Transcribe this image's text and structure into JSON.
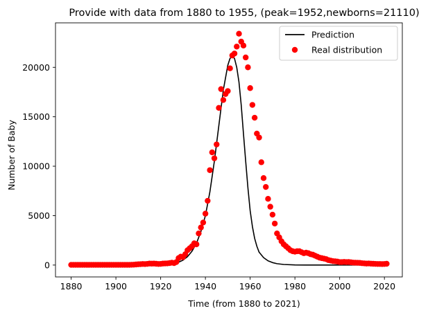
{
  "chart_data": {
    "type": "line+scatter",
    "title": "Provide with data from 1880 to 1955, (peak=1952,newborns=21110)",
    "xlabel": "Time (from 1880 to 2021)",
    "ylabel": "Number of Baby",
    "xlim": [
      1873,
      2028
    ],
    "ylim": [
      -1200,
      24500
    ],
    "xticks": [
      1880,
      1900,
      1920,
      1940,
      1960,
      1980,
      2000,
      2020
    ],
    "yticks": [
      0,
      5000,
      10000,
      15000,
      20000
    ],
    "grid": false,
    "legend_position": "top-right",
    "colors": {
      "prediction": "#000000",
      "real": "#ff0000"
    },
    "legend": [
      {
        "label": "Prediction",
        "marker": "line",
        "color": "#000000"
      },
      {
        "label": "Real distribution",
        "marker": "dot",
        "color": "#ff0000"
      }
    ],
    "series": [
      {
        "name": "Prediction",
        "kind": "line",
        "color": "#000000",
        "points": [
          [
            1880,
            0
          ],
          [
            1900,
            0
          ],
          [
            1910,
            2
          ],
          [
            1915,
            8
          ],
          [
            1920,
            30
          ],
          [
            1923,
            70
          ],
          [
            1926,
            160
          ],
          [
            1928,
            290
          ],
          [
            1930,
            500
          ],
          [
            1932,
            850
          ],
          [
            1934,
            1400
          ],
          [
            1936,
            2200
          ],
          [
            1938,
            3400
          ],
          [
            1940,
            5000
          ],
          [
            1942,
            7400
          ],
          [
            1944,
            10500
          ],
          [
            1946,
            14100
          ],
          [
            1948,
            17700
          ],
          [
            1950,
            20200
          ],
          [
            1951,
            20900
          ],
          [
            1952,
            21110
          ],
          [
            1953,
            20900
          ],
          [
            1954,
            20000
          ],
          [
            1955,
            18500
          ],
          [
            1956,
            16200
          ],
          [
            1957,
            13300
          ],
          [
            1958,
            10500
          ],
          [
            1959,
            7800
          ],
          [
            1960,
            5500
          ],
          [
            1961,
            3900
          ],
          [
            1962,
            2700
          ],
          [
            1963,
            1900
          ],
          [
            1964,
            1300
          ],
          [
            1966,
            750
          ],
          [
            1968,
            430
          ],
          [
            1970,
            250
          ],
          [
            1972,
            140
          ],
          [
            1975,
            60
          ],
          [
            1980,
            15
          ],
          [
            1985,
            3
          ],
          [
            1990,
            0
          ],
          [
            2000,
            0
          ],
          [
            2010,
            0
          ],
          [
            2021,
            0
          ]
        ]
      },
      {
        "name": "Real distribution",
        "kind": "scatter",
        "color": "#ff0000",
        "points": [
          [
            1880,
            20
          ],
          [
            1881,
            20
          ],
          [
            1882,
            20
          ],
          [
            1883,
            20
          ],
          [
            1884,
            20
          ],
          [
            1885,
            20
          ],
          [
            1886,
            20
          ],
          [
            1887,
            20
          ],
          [
            1888,
            20
          ],
          [
            1889,
            20
          ],
          [
            1890,
            20
          ],
          [
            1891,
            20
          ],
          [
            1892,
            20
          ],
          [
            1893,
            20
          ],
          [
            1894,
            20
          ],
          [
            1895,
            20
          ],
          [
            1896,
            20
          ],
          [
            1897,
            20
          ],
          [
            1898,
            20
          ],
          [
            1899,
            20
          ],
          [
            1900,
            20
          ],
          [
            1901,
            20
          ],
          [
            1902,
            20
          ],
          [
            1903,
            20
          ],
          [
            1904,
            20
          ],
          [
            1905,
            20
          ],
          [
            1906,
            20
          ],
          [
            1907,
            30
          ],
          [
            1908,
            40
          ],
          [
            1909,
            60
          ],
          [
            1910,
            80
          ],
          [
            1911,
            90
          ],
          [
            1912,
            110
          ],
          [
            1913,
            100
          ],
          [
            1914,
            120
          ],
          [
            1915,
            150
          ],
          [
            1916,
            140
          ],
          [
            1917,
            150
          ],
          [
            1918,
            130
          ],
          [
            1919,
            110
          ],
          [
            1920,
            120
          ],
          [
            1921,
            150
          ],
          [
            1922,
            160
          ],
          [
            1923,
            170
          ],
          [
            1924,
            200
          ],
          [
            1925,
            240
          ],
          [
            1926,
            200
          ],
          [
            1927,
            300
          ],
          [
            1928,
            700
          ],
          [
            1929,
            850
          ],
          [
            1930,
            800
          ],
          [
            1931,
            1100
          ],
          [
            1932,
            1500
          ],
          [
            1933,
            1700
          ],
          [
            1934,
            1900
          ],
          [
            1935,
            2200
          ],
          [
            1936,
            2100
          ],
          [
            1937,
            3200
          ],
          [
            1938,
            3800
          ],
          [
            1939,
            4300
          ],
          [
            1940,
            5200
          ],
          [
            1941,
            6500
          ],
          [
            1942,
            9600
          ],
          [
            1943,
            11400
          ],
          [
            1944,
            10800
          ],
          [
            1945,
            12200
          ],
          [
            1946,
            15900
          ],
          [
            1947,
            17800
          ],
          [
            1948,
            16700
          ],
          [
            1949,
            17300
          ],
          [
            1950,
            17600
          ],
          [
            1951,
            19900
          ],
          [
            1952,
            21200
          ],
          [
            1953,
            21400
          ],
          [
            1954,
            22100
          ],
          [
            1955,
            23400
          ],
          [
            1956,
            22600
          ],
          [
            1957,
            22200
          ],
          [
            1958,
            21000
          ],
          [
            1959,
            20000
          ],
          [
            1960,
            17900
          ],
          [
            1961,
            16200
          ],
          [
            1962,
            14900
          ],
          [
            1963,
            13300
          ],
          [
            1964,
            12900
          ],
          [
            1965,
            10400
          ],
          [
            1966,
            8800
          ],
          [
            1967,
            7900
          ],
          [
            1968,
            6700
          ],
          [
            1969,
            5900
          ],
          [
            1970,
            5100
          ],
          [
            1971,
            4200
          ],
          [
            1972,
            3200
          ],
          [
            1973,
            2800
          ],
          [
            1974,
            2400
          ],
          [
            1975,
            2100
          ],
          [
            1976,
            1900
          ],
          [
            1977,
            1700
          ],
          [
            1978,
            1500
          ],
          [
            1979,
            1400
          ],
          [
            1980,
            1350
          ],
          [
            1981,
            1400
          ],
          [
            1982,
            1400
          ],
          [
            1983,
            1300
          ],
          [
            1984,
            1200
          ],
          [
            1985,
            1250
          ],
          [
            1986,
            1200
          ],
          [
            1987,
            1100
          ],
          [
            1988,
            1050
          ],
          [
            1989,
            950
          ],
          [
            1990,
            850
          ],
          [
            1991,
            750
          ],
          [
            1992,
            700
          ],
          [
            1993,
            650
          ],
          [
            1994,
            600
          ],
          [
            1995,
            500
          ],
          [
            1996,
            450
          ],
          [
            1997,
            400
          ],
          [
            1998,
            380
          ],
          [
            1999,
            350
          ],
          [
            2000,
            300
          ],
          [
            2001,
            300
          ],
          [
            2002,
            320
          ],
          [
            2003,
            300
          ],
          [
            2004,
            310
          ],
          [
            2005,
            280
          ],
          [
            2006,
            250
          ],
          [
            2007,
            240
          ],
          [
            2008,
            230
          ],
          [
            2009,
            220
          ],
          [
            2010,
            190
          ],
          [
            2011,
            170
          ],
          [
            2012,
            150
          ],
          [
            2013,
            160
          ],
          [
            2014,
            140
          ],
          [
            2015,
            130
          ],
          [
            2016,
            120
          ],
          [
            2017,
            110
          ],
          [
            2018,
            110
          ],
          [
            2019,
            100
          ],
          [
            2020,
            110
          ],
          [
            2021,
            130
          ]
        ]
      }
    ]
  }
}
